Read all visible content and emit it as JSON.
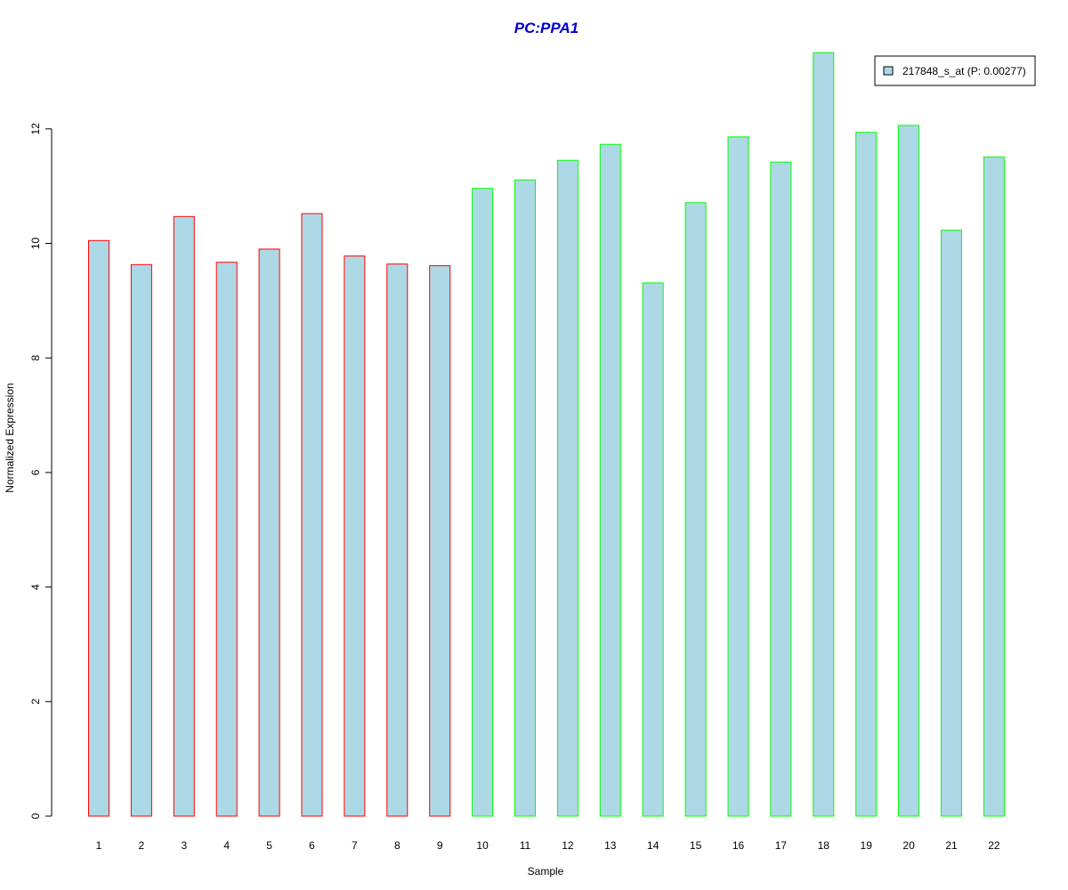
{
  "chart_data": {
    "type": "bar",
    "title": "PC:PPA1",
    "title_color": "#0000CC",
    "xlabel": "Sample",
    "ylabel": "Normalized Expression",
    "categories": [
      "1",
      "2",
      "3",
      "4",
      "5",
      "6",
      "7",
      "8",
      "9",
      "10",
      "11",
      "12",
      "13",
      "14",
      "15",
      "16",
      "17",
      "18",
      "19",
      "20",
      "21",
      "22"
    ],
    "series": [
      {
        "name": "217848_s_at (P: 0.00277)",
        "values": [
          10.05,
          9.63,
          10.47,
          9.67,
          9.9,
          10.52,
          9.78,
          9.64,
          9.61,
          10.96,
          11.11,
          11.45,
          11.73,
          9.31,
          10.71,
          11.86,
          11.42,
          13.33,
          11.94,
          12.06,
          10.23,
          11.51
        ]
      }
    ],
    "bar_fill": "#ADD8E6",
    "bar_outline_colors": [
      "#FF0000",
      "#FF0000",
      "#FF0000",
      "#FF0000",
      "#FF0000",
      "#FF0000",
      "#FF0000",
      "#FF0000",
      "#FF0000",
      "#00FF00",
      "#00FF00",
      "#00FF00",
      "#00FF00",
      "#00FF00",
      "#00FF00",
      "#00FF00",
      "#00FF00",
      "#00FF00",
      "#00FF00",
      "#00FF00",
      "#00FF00",
      "#00FF00"
    ],
    "yticks": [
      "0",
      "2",
      "4",
      "6",
      "8",
      "10",
      "12"
    ],
    "ylim": [
      0,
      13.33
    ],
    "grid": false,
    "legend_position": "top-right"
  }
}
